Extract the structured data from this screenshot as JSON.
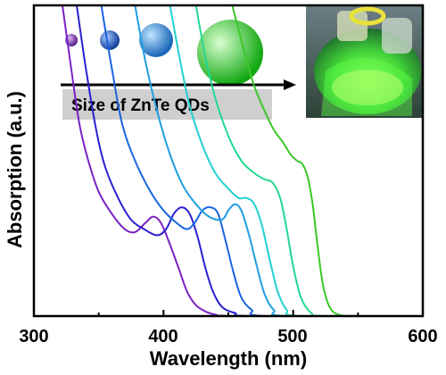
{
  "chart_data": {
    "type": "line",
    "xlabel": "Wavelength (nm)",
    "ylabel": "Absorption (a.u.)",
    "xlim": [
      300,
      600
    ],
    "ylim": [
      0,
      1
    ],
    "xticks": [
      "300",
      "400",
      "500",
      "600"
    ],
    "yticks": [],
    "grid": false,
    "annotation": "Size of ZnTe QDs",
    "inset": "photo of green photoluminescent ZnTe QD solution in flask under UV light",
    "sphere_colors": [
      "#7b3fb0",
      "#1f5fc0",
      "#2a8fd8",
      "#22cc22"
    ],
    "series": [
      {
        "color": "#7b22c4",
        "points": [
          [
            322,
            1.0
          ],
          [
            328,
            0.82
          ],
          [
            335,
            0.62
          ],
          [
            342,
            0.5
          ],
          [
            350,
            0.4
          ],
          [
            360,
            0.33
          ],
          [
            370,
            0.28
          ],
          [
            378,
            0.27
          ],
          [
            386,
            0.3
          ],
          [
            392,
            0.32
          ],
          [
            398,
            0.3
          ],
          [
            405,
            0.23
          ],
          [
            412,
            0.15
          ],
          [
            418,
            0.08
          ],
          [
            424,
            0.04
          ],
          [
            430,
            0.02
          ],
          [
            440,
            0.005
          ],
          [
            460,
            0.0
          ],
          [
            600,
            0.0
          ]
        ]
      },
      {
        "color": "#2b1fd0",
        "points": [
          [
            333,
            1.0
          ],
          [
            340,
            0.8
          ],
          [
            348,
            0.6
          ],
          [
            355,
            0.48
          ],
          [
            365,
            0.38
          ],
          [
            375,
            0.31
          ],
          [
            385,
            0.28
          ],
          [
            395,
            0.26
          ],
          [
            402,
            0.28
          ],
          [
            408,
            0.33
          ],
          [
            414,
            0.35
          ],
          [
            420,
            0.33
          ],
          [
            426,
            0.26
          ],
          [
            432,
            0.16
          ],
          [
            438,
            0.08
          ],
          [
            445,
            0.03
          ],
          [
            455,
            0.01
          ],
          [
            470,
            0.0
          ],
          [
            600,
            0.0
          ]
        ]
      },
      {
        "color": "#1a64e0",
        "points": [
          [
            352,
            1.0
          ],
          [
            360,
            0.8
          ],
          [
            368,
            0.62
          ],
          [
            378,
            0.5
          ],
          [
            390,
            0.4
          ],
          [
            400,
            0.34
          ],
          [
            410,
            0.3
          ],
          [
            418,
            0.28
          ],
          [
            424,
            0.3
          ],
          [
            430,
            0.34
          ],
          [
            436,
            0.35
          ],
          [
            442,
            0.33
          ],
          [
            448,
            0.24
          ],
          [
            454,
            0.14
          ],
          [
            460,
            0.06
          ],
          [
            468,
            0.02
          ],
          [
            480,
            0.0
          ],
          [
            600,
            0.0
          ]
        ]
      },
      {
        "color": "#1f9ee0",
        "points": [
          [
            378,
            1.0
          ],
          [
            386,
            0.82
          ],
          [
            395,
            0.66
          ],
          [
            405,
            0.52
          ],
          [
            415,
            0.42
          ],
          [
            425,
            0.36
          ],
          [
            435,
            0.32
          ],
          [
            445,
            0.31
          ],
          [
            450,
            0.34
          ],
          [
            455,
            0.36
          ],
          [
            460,
            0.34
          ],
          [
            466,
            0.26
          ],
          [
            472,
            0.16
          ],
          [
            478,
            0.07
          ],
          [
            485,
            0.02
          ],
          [
            495,
            0.0
          ],
          [
            600,
            0.0
          ]
        ]
      },
      {
        "color": "#22d0d0",
        "points": [
          [
            405,
            1.0
          ],
          [
            412,
            0.84
          ],
          [
            420,
            0.68
          ],
          [
            430,
            0.55
          ],
          [
            440,
            0.46
          ],
          [
            450,
            0.41
          ],
          [
            458,
            0.38
          ],
          [
            464,
            0.38
          ],
          [
            470,
            0.36
          ],
          [
            476,
            0.29
          ],
          [
            482,
            0.18
          ],
          [
            488,
            0.08
          ],
          [
            495,
            0.02
          ],
          [
            505,
            0.0
          ],
          [
            600,
            0.0
          ]
        ]
      },
      {
        "color": "#22d890",
        "points": [
          [
            425,
            1.0
          ],
          [
            432,
            0.84
          ],
          [
            440,
            0.7
          ],
          [
            450,
            0.58
          ],
          [
            460,
            0.5
          ],
          [
            470,
            0.46
          ],
          [
            478,
            0.44
          ],
          [
            484,
            0.43
          ],
          [
            490,
            0.38
          ],
          [
            495,
            0.28
          ],
          [
            500,
            0.16
          ],
          [
            506,
            0.06
          ],
          [
            514,
            0.01
          ],
          [
            525,
            0.0
          ],
          [
            600,
            0.0
          ]
        ]
      },
      {
        "color": "#3cc82a",
        "points": [
          [
            453,
            1.0
          ],
          [
            458,
            0.92
          ],
          [
            463,
            0.84
          ],
          [
            470,
            0.74
          ],
          [
            478,
            0.66
          ],
          [
            485,
            0.6
          ],
          [
            492,
            0.56
          ],
          [
            498,
            0.52
          ],
          [
            503,
            0.5
          ],
          [
            507,
            0.49
          ],
          [
            511,
            0.45
          ],
          [
            515,
            0.36
          ],
          [
            519,
            0.22
          ],
          [
            523,
            0.1
          ],
          [
            528,
            0.03
          ],
          [
            535,
            0.005
          ],
          [
            550,
            0.0
          ],
          [
            600,
            0.0
          ]
        ]
      }
    ]
  }
}
